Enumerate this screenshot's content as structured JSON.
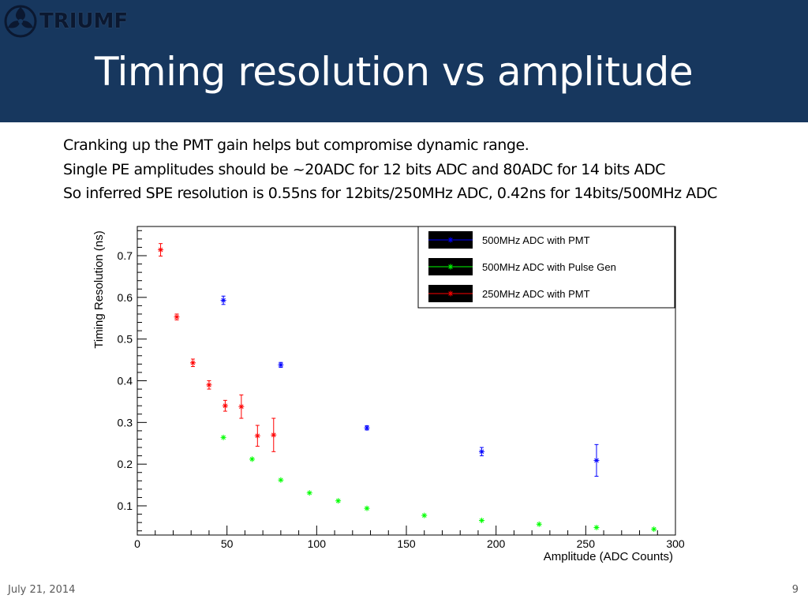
{
  "slide": {
    "logo_text": "TRIUMF",
    "title": "Timing resolution vs amplitude",
    "bullets": [
      "Cranking up the PMT gain helps but compromise dynamic range.",
      "Single PE amplitudes should be ~20ADC for 12 bits ADC and 80ADC for 14 bits ADC",
      "So inferred SPE resolution is 0.55ns for 12bits/250MHz ADC, 0.42ns for 14bits/500MHz ADC"
    ],
    "footer_date": "July 21, 2014",
    "page_number": "9"
  },
  "colors": {
    "header_bg": "#17375e",
    "series_blue": "#0000ff",
    "series_green": "#00ff00",
    "series_red": "#ff0000"
  },
  "chart_data": {
    "type": "scatter",
    "xlabel": "Amplitude (ADC Counts)",
    "ylabel": "Timing Resolution (ns)",
    "xlim": [
      0,
      300
    ],
    "ylim": [
      0.03,
      0.77
    ],
    "x_ticks": [
      0,
      50,
      100,
      150,
      200,
      250,
      300
    ],
    "y_ticks": [
      0.1,
      0.2,
      0.3,
      0.4,
      0.5,
      0.6,
      0.7
    ],
    "legend_position": "top-right",
    "series": [
      {
        "name": "500MHz ADC with PMT",
        "color": "#0000ff",
        "points": [
          {
            "x": 48,
            "y": 0.593,
            "err": 0.01
          },
          {
            "x": 80,
            "y": 0.438,
            "err": 0.006
          },
          {
            "x": 128,
            "y": 0.287,
            "err": 0.005
          },
          {
            "x": 192,
            "y": 0.23,
            "err": 0.01
          },
          {
            "x": 256,
            "y": 0.209,
            "err": 0.038
          }
        ]
      },
      {
        "name": "500MHz ADC with Pulse Gen",
        "color": "#00ff00",
        "points": [
          {
            "x": 48,
            "y": 0.264,
            "err": 0
          },
          {
            "x": 64,
            "y": 0.212,
            "err": 0
          },
          {
            "x": 80,
            "y": 0.162,
            "err": 0
          },
          {
            "x": 96,
            "y": 0.131,
            "err": 0
          },
          {
            "x": 112,
            "y": 0.112,
            "err": 0
          },
          {
            "x": 128,
            "y": 0.094,
            "err": 0
          },
          {
            "x": 160,
            "y": 0.077,
            "err": 0
          },
          {
            "x": 192,
            "y": 0.065,
            "err": 0
          },
          {
            "x": 224,
            "y": 0.056,
            "err": 0
          },
          {
            "x": 256,
            "y": 0.048,
            "err": 0
          },
          {
            "x": 288,
            "y": 0.044,
            "err": 0
          }
        ]
      },
      {
        "name": "250MHz ADC with PMT",
        "color": "#ff0000",
        "points": [
          {
            "x": 13,
            "y": 0.714,
            "err": 0.015
          },
          {
            "x": 22,
            "y": 0.553,
            "err": 0.007
          },
          {
            "x": 31,
            "y": 0.443,
            "err": 0.009
          },
          {
            "x": 40,
            "y": 0.39,
            "err": 0.01
          },
          {
            "x": 49,
            "y": 0.34,
            "err": 0.013
          },
          {
            "x": 58,
            "y": 0.338,
            "err": 0.028
          },
          {
            "x": 67,
            "y": 0.268,
            "err": 0.025
          },
          {
            "x": 76,
            "y": 0.27,
            "err": 0.04
          }
        ]
      }
    ]
  }
}
